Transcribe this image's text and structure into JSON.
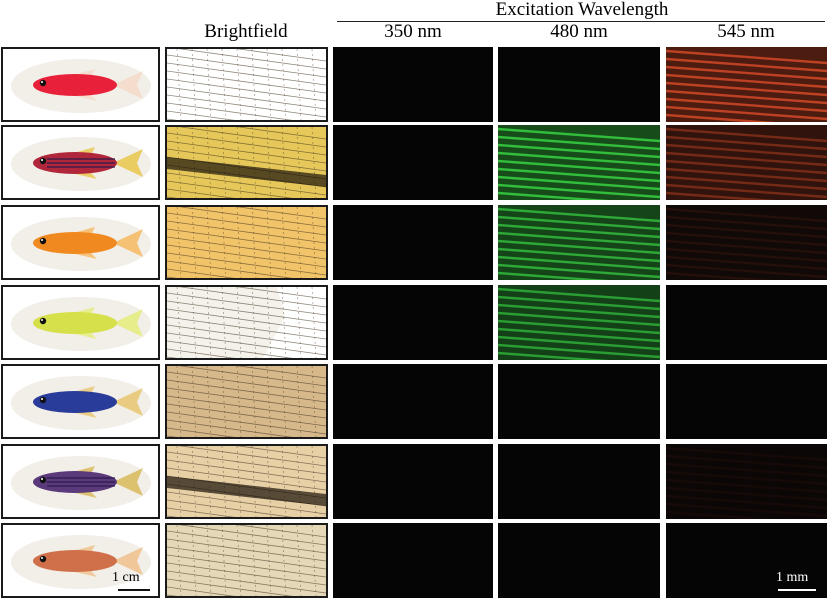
{
  "header": {
    "group_title": "Excitation Wavelength",
    "brightfield": "Brightfield",
    "col_350": "350 nm",
    "col_480": "480 nm",
    "col_545": "545 nm"
  },
  "scale_bars": {
    "fish": "1 cm",
    "fluor": "1 mm"
  },
  "rows": [
    {
      "fish_color": "#e8203a",
      "stripes": false,
      "fin_color": "#f4d9c8",
      "bf_tint": "#ffffff",
      "g480": 0.0,
      "r545": 0.9
    },
    {
      "fish_color": "#b0263a",
      "stripes": true,
      "fin_color": "#e8c64a",
      "bf_tint": "#e6c85a",
      "g480": 0.9,
      "r545": 0.55
    },
    {
      "fish_color": "#f08a20",
      "stripes": false,
      "fin_color": "#f6b860",
      "bf_tint": "#f2c46a",
      "g480": 0.8,
      "r545": 0.15
    },
    {
      "fish_color": "#d6e04a",
      "stripes": false,
      "fin_color": "#e4ec7a",
      "bf_tint": "#f4f2ea",
      "g480": 0.75,
      "r545": 0.0
    },
    {
      "fish_color": "#2a3c9a",
      "stripes": false,
      "fin_color": "#e8c670",
      "bf_tint": "#d6b88a",
      "g480": 0.0,
      "r545": 0.0
    },
    {
      "fish_color": "#5a3a7a",
      "stripes": true,
      "fin_color": "#d8b858",
      "bf_tint": "#e8d0a6",
      "g480": 0.0,
      "r545": 0.08
    },
    {
      "fish_color": "#d0704a",
      "stripes": false,
      "fin_color": "#eec08a",
      "bf_tint": "#e4d8b8",
      "g480": 0.0,
      "r545": 0.0
    }
  ]
}
